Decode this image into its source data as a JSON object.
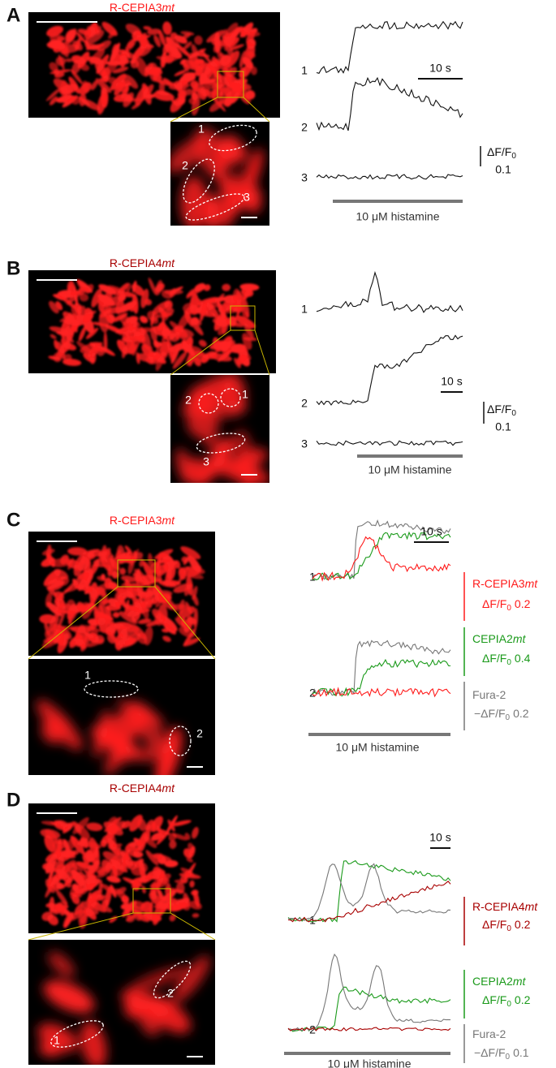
{
  "panels": [
    {
      "label": "A",
      "image_title": {
        "text": "R-CEPIA3",
        "italic": "mt"
      },
      "rois": [
        "1",
        "2",
        "3"
      ],
      "traces": [
        "1",
        "2",
        "3"
      ],
      "time_scale": "10 s",
      "df": {
        "pre": "ΔF/F",
        "sub": "0"
      },
      "df_value": "0.1",
      "stimulus": "10 μM histamine"
    },
    {
      "label": "B",
      "image_title": {
        "text": "R-CEPIA4",
        "italic": "mt"
      },
      "rois": [
        "2",
        "1",
        "3"
      ],
      "traces": [
        "1",
        "2",
        "3"
      ],
      "time_scale": "10 s",
      "df": {
        "pre": "ΔF/F",
        "sub": "0"
      },
      "df_value": "0.1",
      "stimulus": "10 μM histamine"
    },
    {
      "label": "C",
      "image_title": {
        "text": "R-CEPIA3",
        "italic": "mt"
      },
      "rois": [
        "1",
        "2"
      ],
      "traces": [
        "1",
        "2"
      ],
      "time_scale": "10 s",
      "stimulus": "10 μM histamine",
      "legend": [
        {
          "name": {
            "text": "R-CEPIA3",
            "italic": "mt"
          },
          "scale": {
            "pre": "ΔF/F",
            "sub": "0",
            "post": "0.2"
          }
        },
        {
          "name": {
            "text": "CEPIA2",
            "italic": "mt"
          },
          "scale": {
            "pre": "ΔF/F",
            "sub": "0",
            "post": "0.4"
          }
        },
        {
          "name": {
            "text": "Fura-2"
          },
          "scale": {
            "pre": "−ΔF/F",
            "sub": "0",
            "post": "0.2"
          }
        }
      ]
    },
    {
      "label": "D",
      "image_title": {
        "text": "R-CEPIA4",
        "italic": "mt"
      },
      "rois": [
        "1",
        "2"
      ],
      "traces": [
        "1",
        "2"
      ],
      "time_scale": "10 s",
      "stimulus": "10 μM histamine",
      "legend": [
        {
          "name": {
            "text": "R-CEPIA4",
            "italic": "mt"
          },
          "scale": {
            "pre": "ΔF/F",
            "sub": "0",
            "post": "0.2"
          }
        },
        {
          "name": {
            "text": "CEPIA2",
            "italic": "mt"
          },
          "scale": {
            "pre": "ΔF/F",
            "sub": "0",
            "post": "0.2"
          }
        },
        {
          "name": {
            "text": "Fura-2"
          },
          "scale": {
            "pre": "−ΔF/F",
            "sub": "0",
            "post": "0.1"
          }
        }
      ]
    }
  ]
}
